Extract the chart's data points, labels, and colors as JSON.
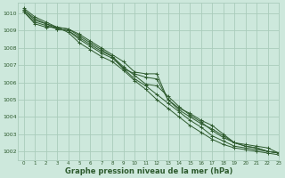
{
  "bg_color": "#cde8dc",
  "grid_color": "#aaccbb",
  "line_color": "#2d5a2d",
  "text_color": "#2d5a2d",
  "xlabel": "Graphe pression niveau de la mer (hPa)",
  "xlim": [
    -0.5,
    23
  ],
  "ylim": [
    1001.5,
    1010.6
  ],
  "yticks": [
    1002,
    1003,
    1004,
    1005,
    1006,
    1007,
    1008,
    1009,
    1010
  ],
  "xticks": [
    0,
    1,
    2,
    3,
    4,
    5,
    6,
    7,
    8,
    9,
    10,
    11,
    12,
    13,
    14,
    15,
    16,
    17,
    18,
    19,
    20,
    21,
    22,
    23
  ],
  "series": [
    [
      1010.3,
      1009.8,
      1009.5,
      1009.2,
      1009.1,
      1008.8,
      1008.4,
      1008.0,
      1007.6,
      1007.2,
      1006.6,
      1006.5,
      1006.5,
      1005.0,
      1004.5,
      1004.2,
      1003.8,
      1003.5,
      1003.0,
      1002.5,
      1002.4,
      1002.3,
      1002.2,
      1001.9
    ],
    [
      1010.2,
      1009.7,
      1009.4,
      1009.2,
      1009.1,
      1008.7,
      1008.3,
      1007.9,
      1007.5,
      1006.8,
      1006.5,
      1006.3,
      1006.2,
      1005.0,
      1004.4,
      1004.0,
      1003.6,
      1003.3,
      1002.9,
      1002.5,
      1002.3,
      1002.2,
      1002.0,
      1001.9
    ],
    [
      1010.2,
      1009.6,
      1009.4,
      1009.1,
      1009.0,
      1008.6,
      1008.2,
      1007.8,
      1007.5,
      1006.9,
      1006.4,
      1005.9,
      1005.8,
      1005.2,
      1004.6,
      1004.1,
      1003.7,
      1003.2,
      1002.8,
      1002.5,
      1002.3,
      1002.2,
      1002.0,
      1001.9
    ],
    [
      1010.1,
      1009.5,
      1009.3,
      1009.1,
      1009.0,
      1008.5,
      1008.1,
      1007.7,
      1007.4,
      1006.8,
      1006.2,
      1005.8,
      1005.3,
      1004.8,
      1004.3,
      1003.8,
      1003.4,
      1002.9,
      1002.6,
      1002.3,
      1002.2,
      1002.1,
      1002.0,
      1001.9
    ],
    [
      1010.1,
      1009.4,
      1009.2,
      1009.2,
      1008.9,
      1008.3,
      1007.9,
      1007.5,
      1007.2,
      1006.7,
      1006.1,
      1005.6,
      1005.0,
      1004.5,
      1004.0,
      1003.5,
      1003.1,
      1002.7,
      1002.4,
      1002.2,
      1002.1,
      1002.0,
      1001.9,
      1001.8
    ]
  ]
}
